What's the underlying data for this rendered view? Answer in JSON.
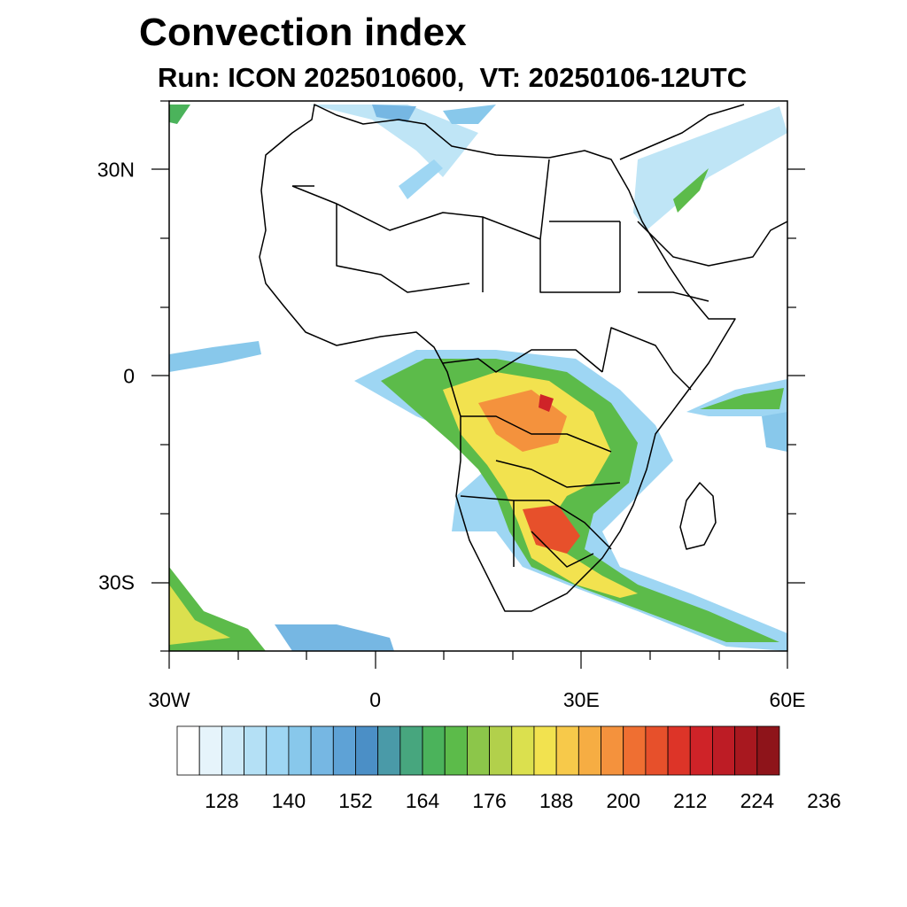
{
  "map": {
    "title": "Convection index",
    "subtitle": "Run: ICON 2025010600,  VT: 20250106-12UTC",
    "lon_labels": [
      {
        "lon": -30,
        "text": "30W"
      },
      {
        "lon": 0,
        "text": "0"
      },
      {
        "lon": 30,
        "text": "30E"
      },
      {
        "lon": 60,
        "text": "60E"
      }
    ],
    "lat_labels": [
      {
        "lat": 30,
        "text": "30N"
      },
      {
        "lat": 0,
        "text": "0"
      },
      {
        "lat": -30,
        "text": "30S"
      }
    ],
    "extent": {
      "lon_min": -30,
      "lon_max": 60,
      "lat_min": -40,
      "lat_max": 40
    }
  },
  "colorbar": {
    "colors": [
      "#ffffff",
      "#e6f4fb",
      "#cdeaf8",
      "#b4e0f5",
      "#9ed6f3",
      "#88c8eb",
      "#76b7e3",
      "#5ea2d6",
      "#4b8fc6",
      "#4a9aa8",
      "#47a67e",
      "#4bb35b",
      "#5cbb4a",
      "#8cc64a",
      "#b2d04b",
      "#dbe04e",
      "#f2e24f",
      "#f7c94a",
      "#f6ad43",
      "#f4923d",
      "#ef6f32",
      "#e7502b",
      "#dd3428",
      "#cf2328",
      "#bd1c25",
      "#a8181f",
      "#8e141a"
    ],
    "tick_labels": [
      "128",
      "140",
      "152",
      "164",
      "176",
      "188",
      "200",
      "212",
      "224",
      "236"
    ]
  }
}
